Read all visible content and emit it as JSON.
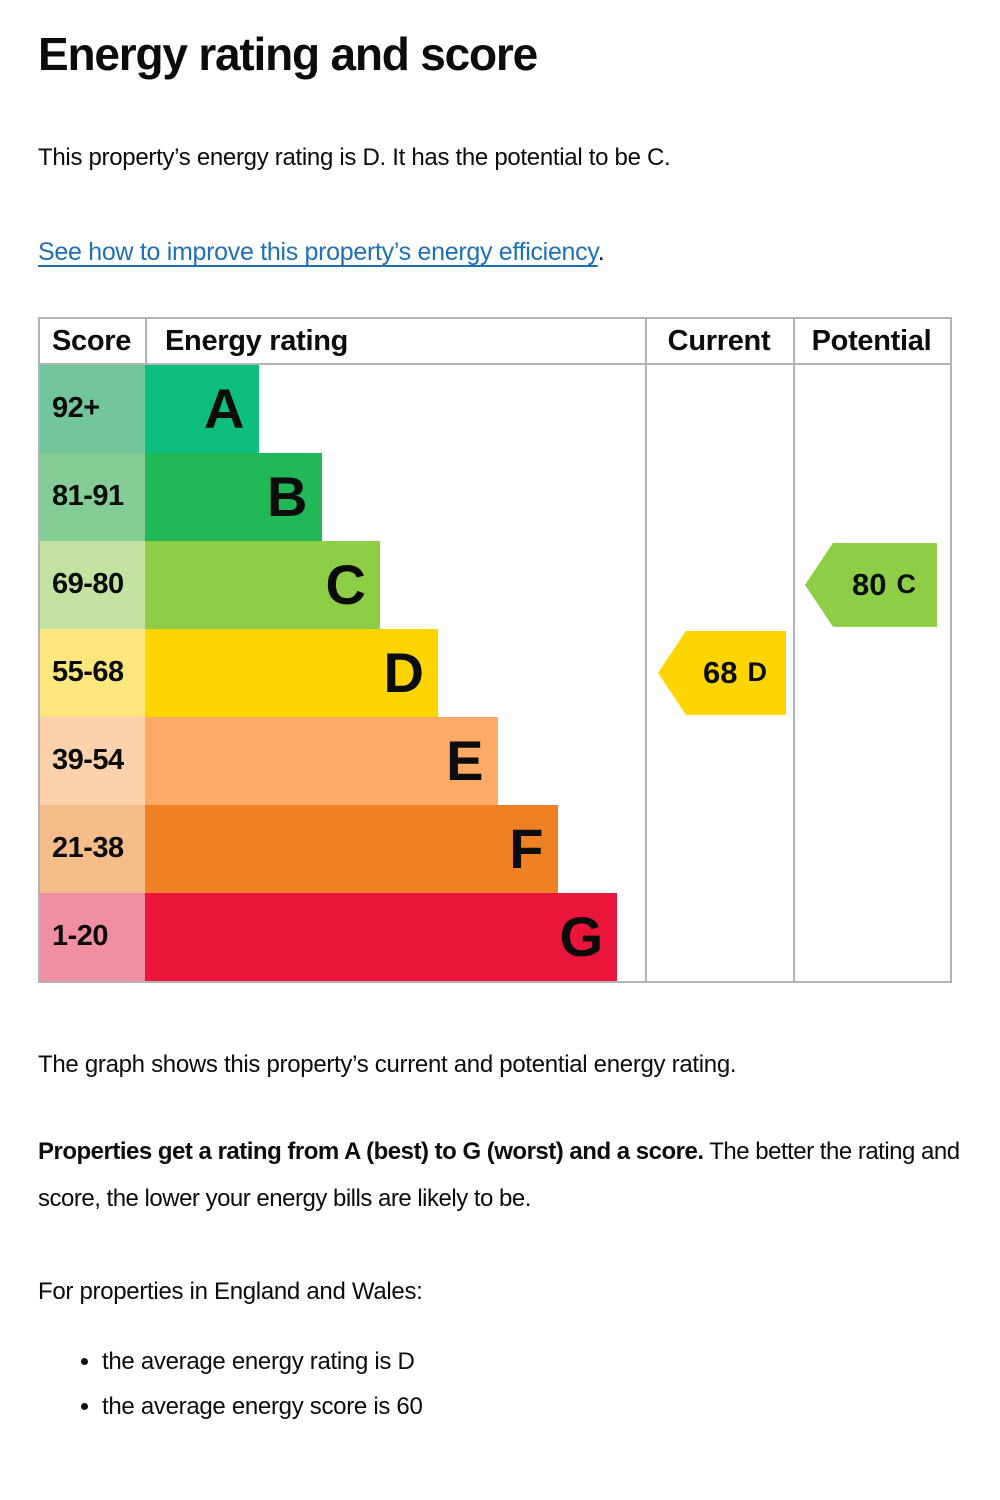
{
  "page": {
    "title": "Energy rating and score",
    "intro": "This property’s energy rating is D. It has the potential to be C.",
    "improve_link": "See how to improve this property’s energy efficiency",
    "improve_link_suffix": ".",
    "graph_caption": "The graph shows this property’s current and potential energy rating.",
    "rating_explain_bold": "Properties get a rating from A (best) to G (worst) and a score.",
    "rating_explain_rest": " The better the rating and score, the lower your energy bills are likely to be.",
    "region_heading": "For properties in England and Wales:",
    "bullets": [
      "the average energy rating is D",
      "the average energy score is 60"
    ]
  },
  "chart_data": {
    "type": "bar",
    "title": "Energy rating and score",
    "columns": {
      "score": "Score",
      "rating": "Energy rating",
      "current": "Current",
      "potential": "Potential"
    },
    "bands": [
      {
        "range": "92+",
        "letter": "A",
        "color": "#0dbe7e",
        "score_bg": "#72c69c",
        "width_pct": 22.7
      },
      {
        "range": "81-91",
        "letter": "B",
        "color": "#21b857",
        "score_bg": "#85cd96",
        "width_pct": 35.3
      },
      {
        "range": "69-80",
        "letter": "C",
        "color": "#8dce46",
        "score_bg": "#c5e3a0",
        "width_pct": 47.0
      },
      {
        "range": "55-68",
        "letter": "D",
        "color": "#ffd500",
        "score_bg": "#fde77c",
        "width_pct": 58.6
      },
      {
        "range": "39-54",
        "letter": "E",
        "color": "#fcaa65",
        "score_bg": "#fbd2ab",
        "width_pct": 70.5
      },
      {
        "range": "21-38",
        "letter": "F",
        "color": "#ef8023",
        "score_bg": "#f5bd89",
        "width_pct": 82.5
      },
      {
        "range": "1-20",
        "letter": "G",
        "color": "#e9153b",
        "score_bg": "#f08fa1",
        "width_pct": 94.4
      }
    ],
    "current": {
      "score": "68",
      "band": "D",
      "color": "#ffd500"
    },
    "potential": {
      "score": "80",
      "band": "C",
      "color": "#8dce46"
    }
  },
  "colors": {
    "text": "#0b0c0c",
    "link": "#1d70b8",
    "table_border": "#b1b4b6",
    "background": "#ffffff"
  }
}
